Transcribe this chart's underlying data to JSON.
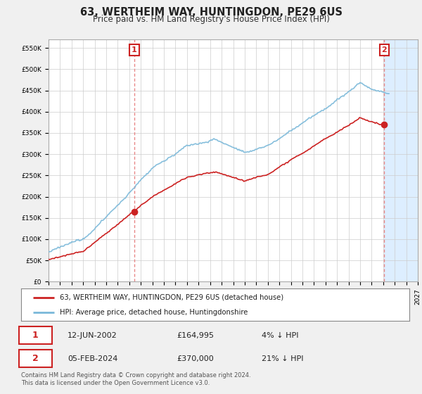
{
  "title": "63, WERTHEIM WAY, HUNTINGDON, PE29 6US",
  "subtitle": "Price paid vs. HM Land Registry's House Price Index (HPI)",
  "ylabel_ticks": [
    "£0",
    "£50K",
    "£100K",
    "£150K",
    "£200K",
    "£250K",
    "£300K",
    "£350K",
    "£400K",
    "£450K",
    "£500K",
    "£550K"
  ],
  "ytick_values": [
    0,
    50000,
    100000,
    150000,
    200000,
    250000,
    300000,
    350000,
    400000,
    450000,
    500000,
    550000
  ],
  "ylim": [
    0,
    570000
  ],
  "xlim_start": 1995.0,
  "xlim_end": 2027.0,
  "hpi_color": "#7ab8d9",
  "price_color": "#cc2222",
  "vline_color": "#e88888",
  "background_color": "#f0f0f0",
  "plot_bg_color": "#ffffff",
  "future_bg_color": "#ddeeff",
  "grid_color": "#cccccc",
  "marker1_x": 2002.44,
  "marker1_y": 164995,
  "marker2_x": 2024.09,
  "marker2_y": 370000,
  "legend_label1": "63, WERTHEIM WAY, HUNTINGDON, PE29 6US (detached house)",
  "legend_label2": "HPI: Average price, detached house, Huntingdonshire",
  "table_row1": [
    "1",
    "12-JUN-2002",
    "£164,995",
    "4% ↓ HPI"
  ],
  "table_row2": [
    "2",
    "05-FEB-2024",
    "£370,000",
    "21% ↓ HPI"
  ],
  "footer": "Contains HM Land Registry data © Crown copyright and database right 2024.\nThis data is licensed under the Open Government Licence v3.0.",
  "title_fontsize": 10.5,
  "subtitle_fontsize": 8.5,
  "tick_fontsize": 6.5,
  "hatched_region_start": 2024.09,
  "hatched_region_end": 2027.0
}
